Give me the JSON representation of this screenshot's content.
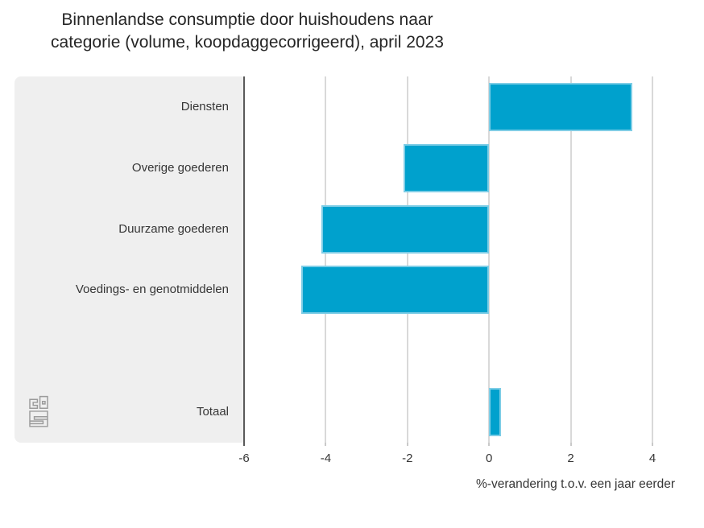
{
  "title": {
    "line1": "Binnenlandse consumptie door huishoudens naar",
    "line2": "categorie (volume, koopdaggecorrigeerd), april 2023"
  },
  "chart_data": {
    "type": "bar",
    "orientation": "horizontal",
    "title": "Binnenlandse consumptie door huishoudens naar categorie (volume, koopdaggecorrigeerd), april 2023",
    "categories": [
      "Diensten",
      "Overige goederen",
      "Duurzame goederen",
      "Voedings- en genotmiddelen",
      "Totaal"
    ],
    "values": [
      3.5,
      -2.1,
      -4.1,
      -4.6,
      0.3
    ],
    "unit": "%",
    "xlabel": "%-verandering t.o.v. een jaar eerder",
    "xlim": [
      -6,
      4.6
    ],
    "xticks": [
      -6,
      -4,
      -2,
      0,
      2,
      4
    ],
    "xtick_labels": [
      "-6",
      "-4",
      "-2",
      "0",
      "2",
      "4"
    ],
    "grid": true,
    "gap_before_last_row": true,
    "legend": "none",
    "colors": {
      "bar": "#00a1cd",
      "bar_border": "#7ecde6",
      "panel_bg": "#efefef",
      "gridline": "#d9d9d9",
      "axis_line": "#5a5a5a",
      "text": "#363636"
    }
  },
  "logo": {
    "name": "cbs-logo"
  }
}
